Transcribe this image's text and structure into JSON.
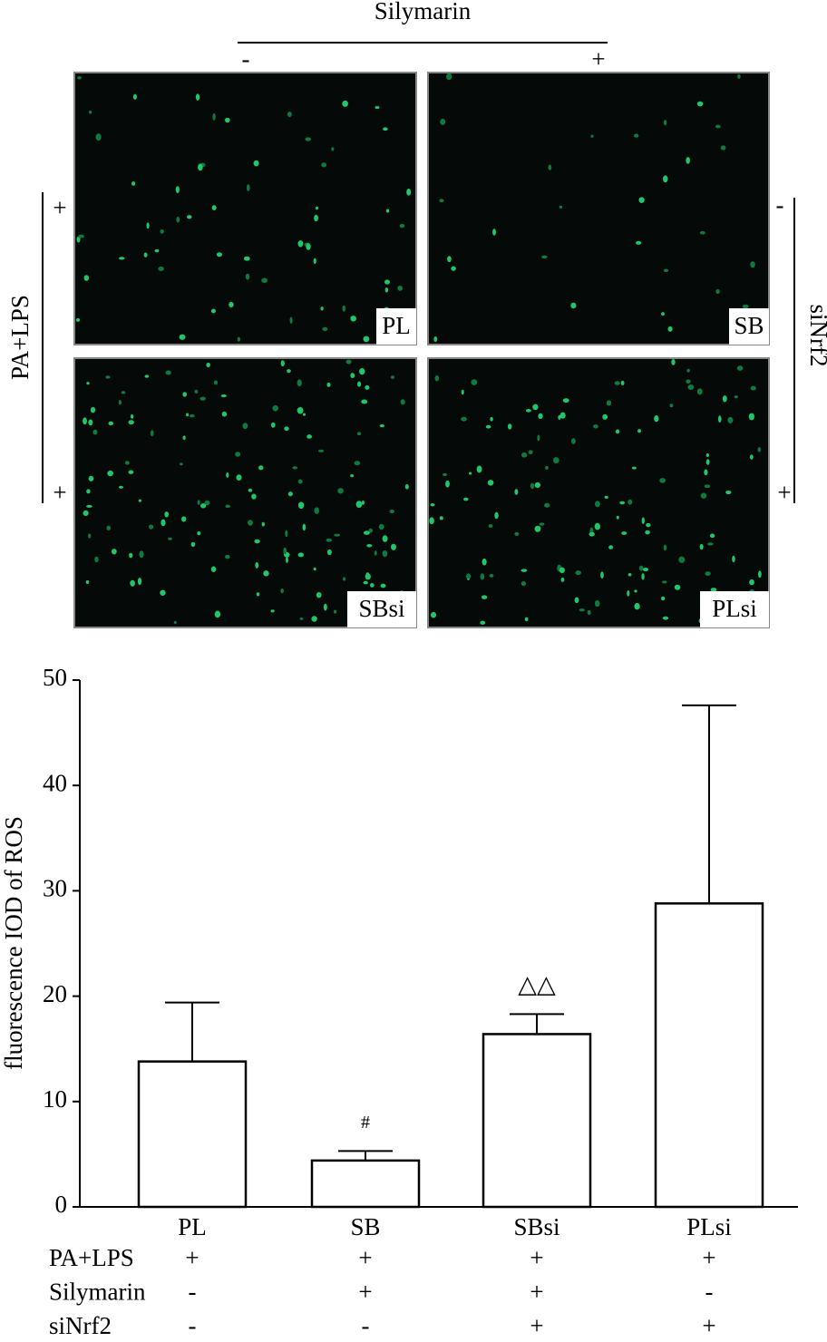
{
  "panels": {
    "header": "Silymarin",
    "header_signs": [
      "-",
      "+"
    ],
    "left_label": "PA+LPS",
    "left_signs": [
      "+",
      "+"
    ],
    "right_label": "siNrf2",
    "right_signs": [
      "-",
      "+"
    ],
    "images": [
      "PL",
      "SB",
      "SBsi",
      "PLsi"
    ]
  },
  "chart_data": {
    "type": "bar",
    "categories": [
      "PL",
      "SB",
      "SBsi",
      "PLsi"
    ],
    "values": [
      13.8,
      4.4,
      16.4,
      28.8
    ],
    "errors": [
      5.6,
      0.9,
      1.9,
      18.8
    ],
    "value_annotations": [
      null,
      "#",
      "△△",
      null
    ],
    "ylabel": "fluorescence IOD of ROS",
    "ylim": [
      0,
      50
    ],
    "yticks": [
      0,
      10,
      20,
      30,
      40,
      50
    ],
    "color": "#ffffff",
    "treatments": [
      {
        "name": "PA+LPS",
        "signs": [
          "+",
          "+",
          "+",
          "+"
        ]
      },
      {
        "name": "Silymarin",
        "signs": [
          "-",
          "+",
          "+",
          "-"
        ]
      },
      {
        "name": "siNrf2",
        "signs": [
          "-",
          "-",
          "+",
          "+"
        ]
      }
    ]
  }
}
